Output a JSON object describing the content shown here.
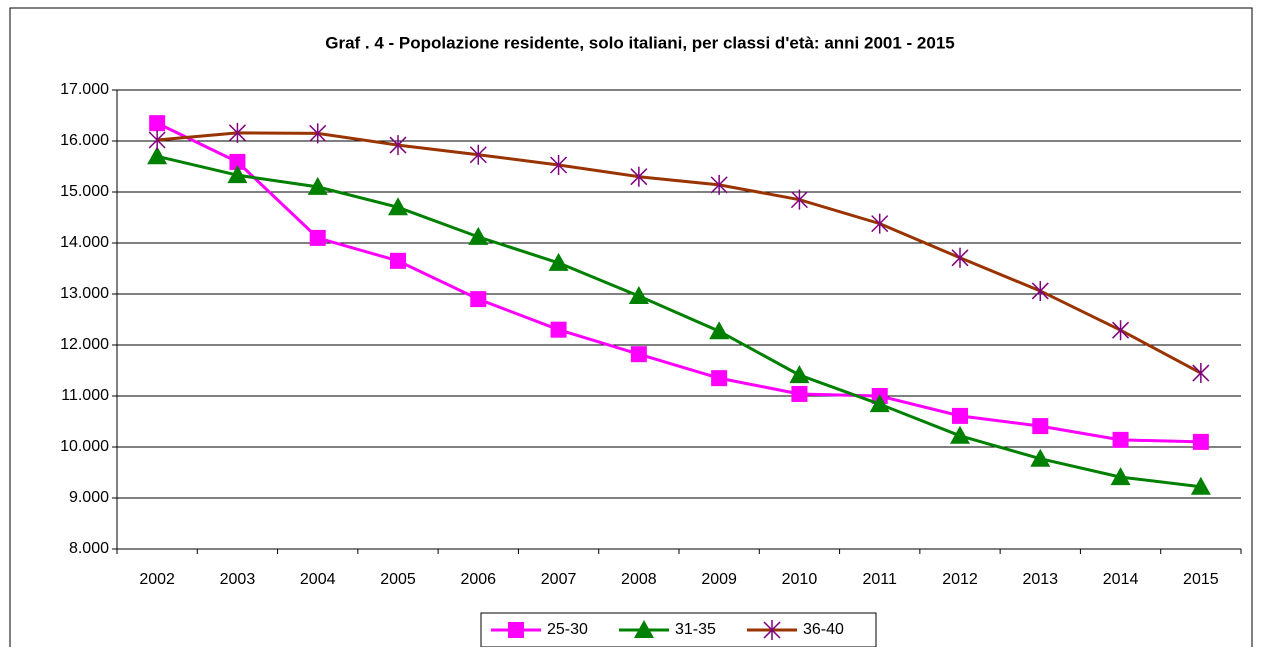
{
  "chart_data": {
    "type": "line",
    "title": "Graf . 4 - Popolazione residente, solo italiani, per classi d'età: anni 2001 - 2015",
    "categories": [
      "2002",
      "2003",
      "2004",
      "2005",
      "2006",
      "2007",
      "2008",
      "2009",
      "2010",
      "2011",
      "2012",
      "2013",
      "2014",
      "2015"
    ],
    "series": [
      {
        "name": "25-30",
        "color": "#ff00ff",
        "marker": "square",
        "values": [
          16350,
          15590,
          14100,
          13650,
          12900,
          12300,
          11820,
          11350,
          11040,
          11000,
          10610,
          10410,
          10140,
          10100
        ]
      },
      {
        "name": "31-35",
        "color": "#008000",
        "marker": "triangle",
        "values": [
          15700,
          15330,
          15100,
          14700,
          14120,
          13610,
          12960,
          12270,
          11410,
          10840,
          10220,
          9770,
          9410,
          9220
        ]
      },
      {
        "name": "36-40",
        "color": "#993300",
        "marker": "asterisk",
        "marker_color": "#800080",
        "values": [
          16020,
          16160,
          16150,
          15920,
          15730,
          15530,
          15300,
          15140,
          14850,
          14380,
          13710,
          13060,
          12290,
          11450
        ]
      }
    ],
    "ylim": [
      8000,
      17000
    ],
    "yticks": [
      {
        "value": 8000,
        "label": "8.000"
      },
      {
        "value": 9000,
        "label": "9.000"
      },
      {
        "value": 10000,
        "label": "10.000"
      },
      {
        "value": 11000,
        "label": "11.000"
      },
      {
        "value": 12000,
        "label": "12.000"
      },
      {
        "value": 13000,
        "label": "13.000"
      },
      {
        "value": 14000,
        "label": "14.000"
      },
      {
        "value": 15000,
        "label": "15.000"
      },
      {
        "value": 16000,
        "label": "16.000"
      },
      {
        "value": 17000,
        "label": "17.000"
      }
    ],
    "grid": true,
    "legend": "bottom"
  }
}
